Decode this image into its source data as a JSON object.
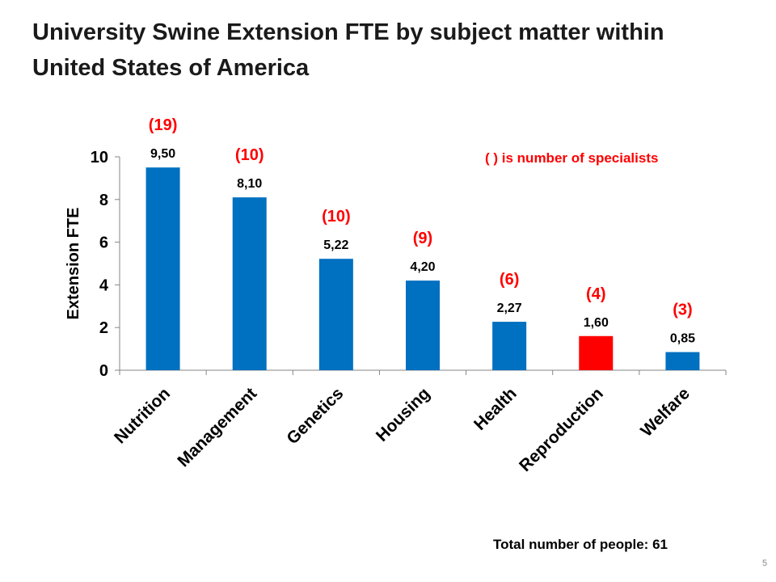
{
  "slide": {
    "title_line1": "University Swine Extension FTE by subject matter within",
    "title_line2": "United States of America",
    "note": "( ) is number of specialists",
    "total": "Total number of people:  61",
    "page_number": "5"
  },
  "chart_data": {
    "type": "bar",
    "ylabel": "Extension FTE",
    "xlabel": "",
    "ylim": [
      0,
      10
    ],
    "yticks": [
      "0",
      "2",
      "4",
      "6",
      "8",
      "10"
    ],
    "categories": [
      "Nutrition",
      "Management",
      "Genetics",
      "Housing",
      "Health",
      "Reproduction",
      "Welfare"
    ],
    "values": [
      9.5,
      8.1,
      5.22,
      4.2,
      2.27,
      1.6,
      0.85
    ],
    "value_labels": [
      "9,50",
      "8,10",
      "5,22",
      "4,20",
      "2,27",
      "1,60",
      "0,85"
    ],
    "specialist_labels": [
      "(19)",
      "(10)",
      "(10)",
      "(9)",
      "(6)",
      "(4)",
      "(3)"
    ],
    "colors": {
      "default": "#0070c0",
      "highlight": "#ff0000",
      "highlight_category": "Reproduction",
      "annotation": "#ff0000"
    },
    "grid": false
  }
}
